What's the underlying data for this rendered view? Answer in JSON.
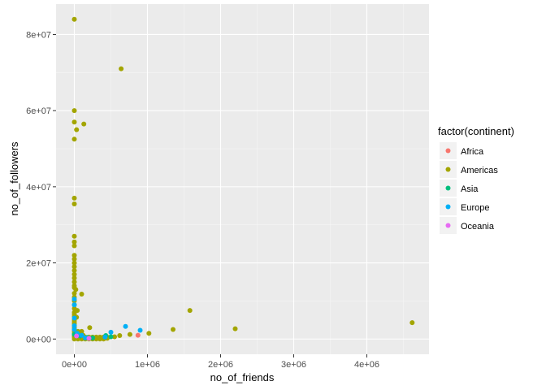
{
  "chart_data": {
    "type": "scatter",
    "xlabel": "no_of_friends",
    "ylabel": "no_of_followers",
    "xlim": [
      -250000,
      4850000
    ],
    "ylim": [
      -4000000,
      88000000
    ],
    "x_ticks": [
      0,
      1000000,
      2000000,
      3000000,
      4000000
    ],
    "x_tick_labels": [
      "0e+00",
      "1e+06",
      "2e+06",
      "3e+06",
      "4e+06"
    ],
    "y_ticks": [
      0,
      20000000,
      40000000,
      60000000,
      80000000
    ],
    "y_tick_labels": [
      "0e+00",
      "2e+07",
      "4e+07",
      "6e+07",
      "8e+07"
    ],
    "grid": true,
    "background": "#ebebeb",
    "legend": {
      "title": "factor(continent)",
      "placement": "right"
    },
    "series": [
      {
        "name": "Africa",
        "color": "#f8766d",
        "points": [
          [
            870000,
            1000000
          ],
          [
            60000,
            300000
          ],
          [
            300000,
            200000
          ]
        ]
      },
      {
        "name": "Americas",
        "color": "#a3a500",
        "points": [
          [
            0,
            84000000
          ],
          [
            640000,
            71000000
          ],
          [
            0,
            60000000
          ],
          [
            0,
            57000000
          ],
          [
            130000,
            56500000
          ],
          [
            30000,
            55000000
          ],
          [
            0,
            52500000
          ],
          [
            0,
            37000000
          ],
          [
            0,
            35500000
          ],
          [
            0,
            27000000
          ],
          [
            0,
            25500000
          ],
          [
            0,
            24500000
          ],
          [
            0,
            22000000
          ],
          [
            0,
            21000000
          ],
          [
            0,
            20000000
          ],
          [
            0,
            19000000
          ],
          [
            0,
            18000000
          ],
          [
            0,
            17000000
          ],
          [
            0,
            16000000
          ],
          [
            0,
            15000000
          ],
          [
            0,
            14000000
          ],
          [
            0,
            13500000
          ],
          [
            20000,
            13000000
          ],
          [
            0,
            12000000
          ],
          [
            100000,
            11800000
          ],
          [
            0,
            11000000
          ],
          [
            0,
            10000000
          ],
          [
            0,
            9000000
          ],
          [
            0,
            8000000
          ],
          [
            40000,
            7500000
          ],
          [
            0,
            7000000
          ],
          [
            0,
            6500000
          ],
          [
            0,
            6000000
          ],
          [
            30000,
            5700000
          ],
          [
            0,
            5000000
          ],
          [
            0,
            4500000
          ],
          [
            0,
            4000000
          ],
          [
            0,
            3500000
          ],
          [
            0,
            3000000
          ],
          [
            210000,
            3000000
          ],
          [
            0,
            2500000
          ],
          [
            0,
            2000000
          ],
          [
            50000,
            2000000
          ],
          [
            100000,
            2000000
          ],
          [
            0,
            1500000
          ],
          [
            30000,
            1500000
          ],
          [
            80000,
            1500000
          ],
          [
            0,
            1000000
          ],
          [
            20000,
            1000000
          ],
          [
            60000,
            1000000
          ],
          [
            120000,
            1000000
          ],
          [
            0,
            500000
          ],
          [
            50000,
            500000
          ],
          [
            100000,
            500000
          ],
          [
            150000,
            500000
          ],
          [
            200000,
            500000
          ],
          [
            250000,
            500000
          ],
          [
            300000,
            500000
          ],
          [
            350000,
            500000
          ],
          [
            400000,
            500000
          ],
          [
            450000,
            500000
          ],
          [
            0,
            0
          ],
          [
            50000,
            0
          ],
          [
            100000,
            0
          ],
          [
            150000,
            0
          ],
          [
            200000,
            0
          ],
          [
            250000,
            0
          ],
          [
            300000,
            0
          ],
          [
            350000,
            0
          ],
          [
            400000,
            0
          ],
          [
            450000,
            200000
          ],
          [
            550000,
            600000
          ],
          [
            620000,
            900000
          ],
          [
            760000,
            1200000
          ],
          [
            1020000,
            1500000
          ],
          [
            1350000,
            2500000
          ],
          [
            1580000,
            7500000
          ],
          [
            2200000,
            2700000
          ],
          [
            4620000,
            4300000
          ]
        ]
      },
      {
        "name": "Asia",
        "color": "#00bf7d",
        "points": [
          [
            80000,
            800000
          ],
          [
            180000,
            400000
          ],
          [
            250000,
            300000
          ],
          [
            430000,
            900000
          ],
          [
            500000,
            600000
          ],
          [
            0,
            1200000
          ]
        ]
      },
      {
        "name": "Europe",
        "color": "#00b0f6",
        "points": [
          [
            0,
            10500000
          ],
          [
            0,
            9000000
          ],
          [
            0,
            5500000
          ],
          [
            0,
            3500000
          ],
          [
            0,
            2500000
          ],
          [
            40000,
            1500000
          ],
          [
            100000,
            1000000
          ],
          [
            150000,
            300000
          ],
          [
            500000,
            1800000
          ],
          [
            700000,
            3300000
          ],
          [
            900000,
            2300000
          ],
          [
            420000,
            500000
          ]
        ]
      },
      {
        "name": "Oceania",
        "color": "#e76bf3",
        "points": [
          [
            30000,
            800000
          ],
          [
            200000,
            200000
          ]
        ]
      }
    ]
  }
}
